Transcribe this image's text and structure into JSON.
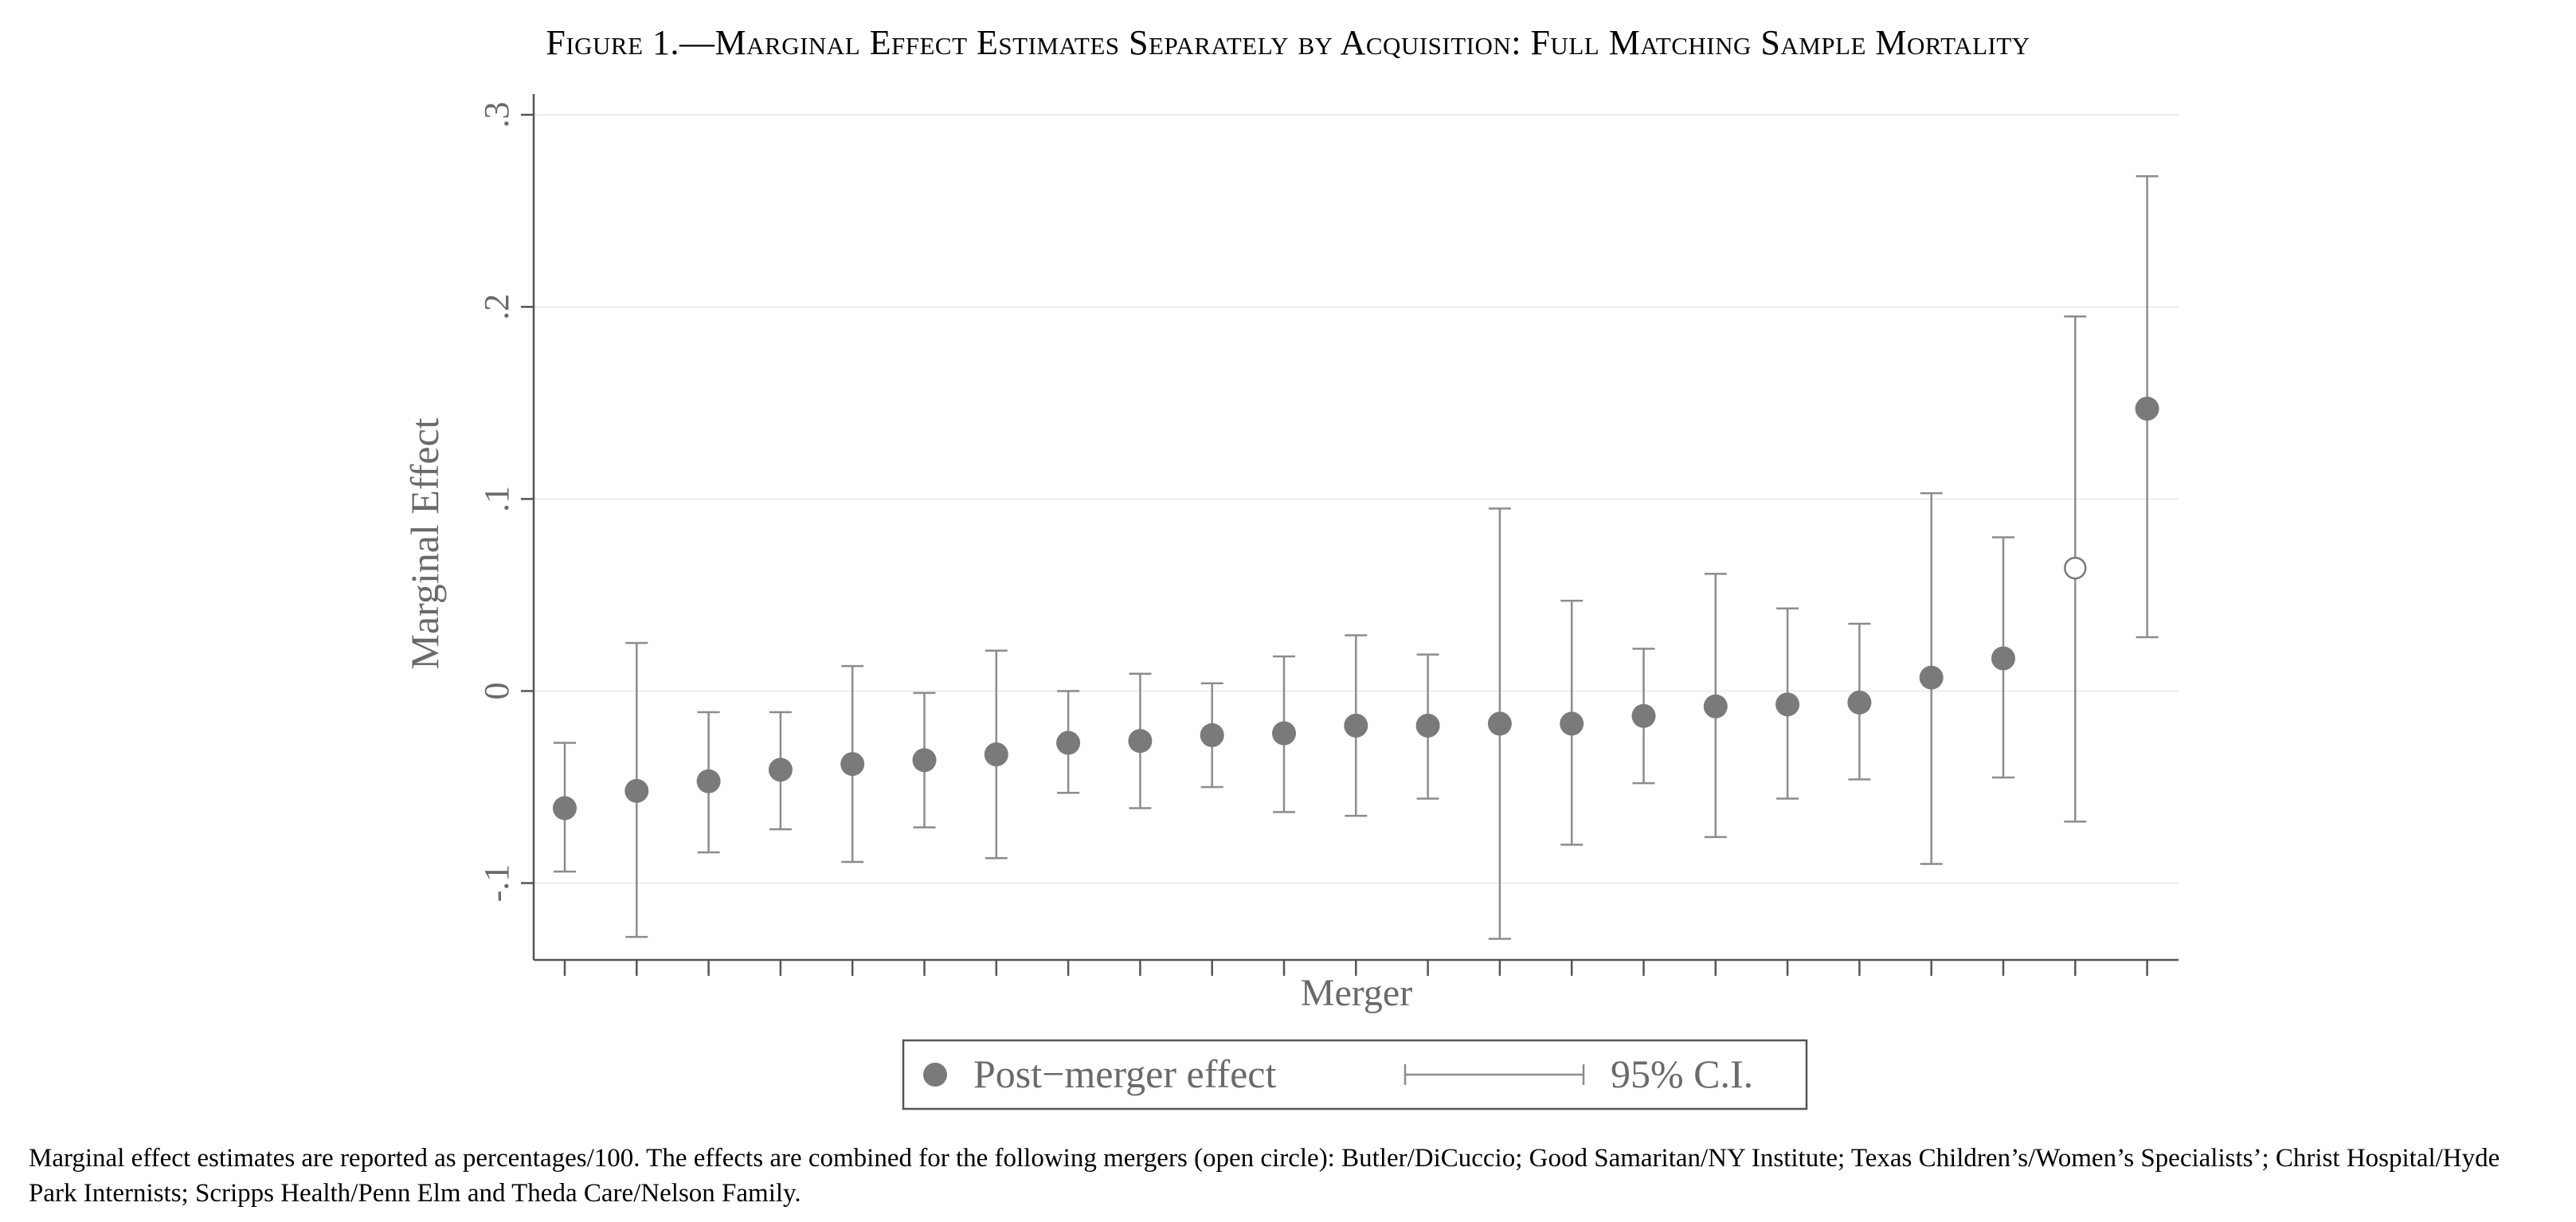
{
  "figure_title": "Figure 1.—Marginal Effect Estimates Separately by Acquisition: Full Matching Sample Mortality",
  "note": "Marginal effect estimates are reported as percentages/100. The effects are combined for the following mergers (open circle): Butler/DiCuccio; Good Samaritan/NY Institute; Texas Children’s/Women’s Specialists’; Christ Hospital/Hyde Park Internists; Scripps Health/Penn Elm and Theda Care/Nelson Family.",
  "colors": {
    "marker": "#7a7a7a",
    "ci_line": "#8c8c8c",
    "axis": "#555555",
    "grid": "#ececec",
    "text": "#6a6a6a"
  },
  "chart_data": {
    "type": "scatter",
    "xlabel": "Merger",
    "ylabel": "Marginal Effect",
    "ylim": [
      -0.14,
      0.31
    ],
    "yticks": [
      -0.1,
      0,
      0.1,
      0.2,
      0.3
    ],
    "ytick_labels": [
      "-.1",
      "0",
      ".1",
      ".2",
      ".3"
    ],
    "grid": true,
    "legend": {
      "placement": "bottom-center",
      "entries": [
        {
          "label": "Post−merger effect",
          "symbol": "filled-circle"
        },
        {
          "label": "95% C.I.",
          "symbol": "capped-line"
        }
      ]
    },
    "x": [
      1,
      2,
      3,
      4,
      5,
      6,
      7,
      8,
      9,
      10,
      11,
      12,
      13,
      14,
      15,
      16,
      17,
      18,
      19,
      20,
      21,
      22,
      23
    ],
    "estimates": [
      -0.061,
      -0.052,
      -0.047,
      -0.041,
      -0.038,
      -0.036,
      -0.033,
      -0.027,
      -0.026,
      -0.023,
      -0.022,
      -0.018,
      -0.018,
      -0.017,
      -0.017,
      -0.013,
      -0.008,
      -0.007,
      -0.006,
      0.007,
      0.017,
      0.064,
      0.147
    ],
    "ci_lower": [
      -0.094,
      -0.128,
      -0.084,
      -0.072,
      -0.089,
      -0.071,
      -0.087,
      -0.053,
      -0.061,
      -0.05,
      -0.063,
      -0.065,
      -0.056,
      -0.129,
      -0.08,
      -0.048,
      -0.076,
      -0.056,
      -0.046,
      -0.09,
      -0.045,
      -0.068,
      0.028
    ],
    "ci_upper": [
      -0.027,
      0.025,
      -0.011,
      -0.011,
      0.013,
      -0.001,
      0.021,
      0.0,
      0.009,
      0.004,
      0.018,
      0.029,
      0.019,
      0.095,
      0.047,
      0.022,
      0.061,
      0.043,
      0.035,
      0.103,
      0.08,
      0.195,
      0.268
    ],
    "open_marker": [
      false,
      false,
      false,
      false,
      false,
      false,
      false,
      false,
      false,
      false,
      false,
      false,
      false,
      false,
      false,
      false,
      false,
      false,
      false,
      false,
      false,
      true,
      false
    ]
  }
}
